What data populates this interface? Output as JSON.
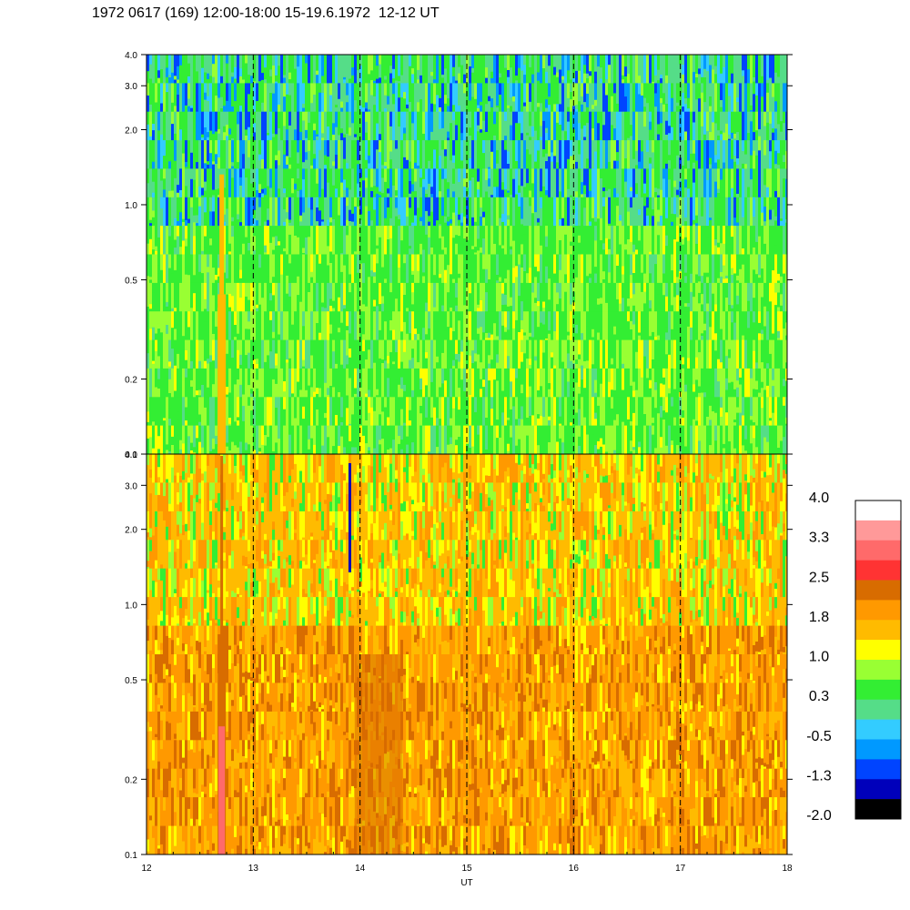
{
  "title": "1972 0617 (169) 12:00-18:00 15-19.6.1972  12-12 UT",
  "chart_data": [
    {
      "type": "heatmap",
      "panel": "upper",
      "x_range": [
        12,
        18
      ],
      "y_range": [
        0.1,
        4.0
      ],
      "y_scale": "log",
      "y_ticks": [
        "4.0",
        "3.0",
        "2.0",
        "1.0",
        "0.5",
        "0.2",
        "0.1"
      ],
      "y_tick_values": [
        4.0,
        3.0,
        2.0,
        1.0,
        0.5,
        0.2,
        0.1
      ],
      "grid": "vertical dashed lines at 13, 14, 15, 16, 17",
      "dominant_levels": {
        "above_1.0": [
          -0.5,
          0.3
        ],
        "below_1.0": [
          0.3,
          1.0
        ]
      }
    },
    {
      "type": "heatmap",
      "panel": "lower",
      "x_range": [
        12,
        18
      ],
      "y_range": [
        0.1,
        4.0
      ],
      "y_scale": "log",
      "y_ticks": [
        "4.0",
        "3.0",
        "2.0",
        "1.0",
        "0.5",
        "0.2",
        "0.1"
      ],
      "y_tick_values": [
        4.0,
        3.0,
        2.0,
        1.0,
        0.5,
        0.2,
        0.1
      ],
      "x_ticks": [
        "12",
        "13",
        "14",
        "15",
        "16",
        "17",
        "18"
      ],
      "x_tick_values": [
        12,
        13,
        14,
        15,
        16,
        17,
        18
      ],
      "xlabel": "UT",
      "grid": "vertical dashed lines at 13, 14, 15, 16, 17",
      "dominant_levels": {
        "above_1.0": [
          1.0,
          1.8
        ],
        "below_1.0": [
          1.8,
          2.5
        ]
      }
    }
  ],
  "colorbar": {
    "labels": [
      "4.0",
      "3.3",
      "2.5",
      "1.8",
      "1.0",
      "0.3",
      "-0.5",
      "-1.3",
      "-2.0"
    ],
    "colors": [
      "#ffffff",
      "#ff9999",
      "#ff6a6a",
      "#ff3333",
      "#d86c00",
      "#ff9900",
      "#ffbb00",
      "#ffff00",
      "#99ff33",
      "#33ee33",
      "#55dd88",
      "#33ccff",
      "#0099ff",
      "#0044ff",
      "#0000bb",
      "#000000"
    ]
  }
}
